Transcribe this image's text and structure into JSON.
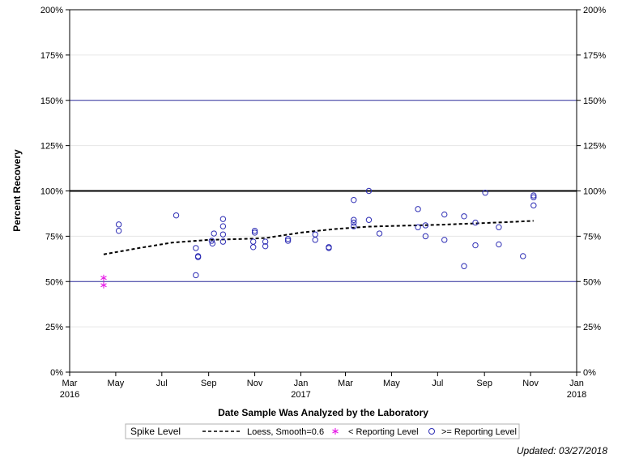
{
  "chart_data": {
    "type": "scatter",
    "xlabel": "Date Sample Was Analyzed by the Laboratory",
    "ylabel": "Percent Recovery",
    "xlim": [
      "2016-03-01",
      "2018-01-01"
    ],
    "ylim": [
      0,
      200
    ],
    "x_ticks": [
      {
        "date": "2016-03-01",
        "label": "Mar",
        "year": "2016"
      },
      {
        "date": "2016-05-01",
        "label": "May",
        "year": ""
      },
      {
        "date": "2016-07-01",
        "label": "Jul",
        "year": ""
      },
      {
        "date": "2016-09-01",
        "label": "Sep",
        "year": ""
      },
      {
        "date": "2016-11-01",
        "label": "Nov",
        "year": ""
      },
      {
        "date": "2017-01-01",
        "label": "Jan",
        "year": "2017"
      },
      {
        "date": "2017-03-01",
        "label": "Mar",
        "year": ""
      },
      {
        "date": "2017-05-01",
        "label": "May",
        "year": ""
      },
      {
        "date": "2017-07-01",
        "label": "Jul",
        "year": ""
      },
      {
        "date": "2017-09-01",
        "label": "Sep",
        "year": ""
      },
      {
        "date": "2017-11-01",
        "label": "Nov",
        "year": ""
      },
      {
        "date": "2018-01-01",
        "label": "Jan",
        "year": "2018"
      }
    ],
    "y_ticks": [
      0,
      25,
      50,
      75,
      100,
      125,
      150,
      175,
      200
    ],
    "y_tick_labels": [
      "0%",
      "25%",
      "50%",
      "75%",
      "100%",
      "125%",
      "150%",
      "175%",
      "200%"
    ],
    "grid": true,
    "reference_lines": [
      {
        "y": 50,
        "color": "#2e2e9e",
        "style": "thin"
      },
      {
        "y": 100,
        "color": "#000000",
        "style": "thick"
      },
      {
        "y": 150,
        "color": "#2e2e9e",
        "style": "thin"
      }
    ],
    "series": [
      {
        "name": "Loess, Smoothing=0.6",
        "type": "line",
        "style": "dashed",
        "color": "#000000",
        "points": [
          [
            "2016-04-15",
            65
          ],
          [
            "2016-06-01",
            68.5
          ],
          [
            "2016-07-15",
            71.5
          ],
          [
            "2016-09-01",
            73
          ],
          [
            "2016-10-15",
            73.5
          ],
          [
            "2016-11-15",
            74
          ],
          [
            "2017-01-01",
            77
          ],
          [
            "2017-02-15",
            79
          ],
          [
            "2017-04-01",
            80.3
          ],
          [
            "2017-05-15",
            80.8
          ],
          [
            "2017-07-01",
            81.3
          ],
          [
            "2017-08-15",
            82
          ],
          [
            "2017-10-01",
            82.8
          ],
          [
            "2017-11-05",
            83.5
          ]
        ]
      },
      {
        "name": "< Reporting Level",
        "type": "scatter",
        "marker": "asterisk",
        "color": "#e619e6",
        "points": [
          [
            "2016-04-15",
            52
          ],
          [
            "2016-04-15",
            48
          ]
        ]
      },
      {
        "name": ">= Reporting Level",
        "type": "scatter",
        "marker": "open-circle",
        "color": "#2d2db4",
        "points": [
          [
            "2016-05-05",
            81.5
          ],
          [
            "2016-05-05",
            78
          ],
          [
            "2016-07-20",
            86.5
          ],
          [
            "2016-08-15",
            68.5
          ],
          [
            "2016-08-15",
            53.5
          ],
          [
            "2016-08-18",
            64
          ],
          [
            "2016-08-18",
            63.5
          ],
          [
            "2016-09-05",
            72.5
          ],
          [
            "2016-09-06",
            71
          ],
          [
            "2016-09-08",
            76.5
          ],
          [
            "2016-09-20",
            84.5
          ],
          [
            "2016-09-20",
            80.5
          ],
          [
            "2016-09-20",
            76
          ],
          [
            "2016-09-20",
            72
          ],
          [
            "2016-10-30",
            72
          ],
          [
            "2016-10-30",
            69
          ],
          [
            "2016-11-01",
            78
          ],
          [
            "2016-11-01",
            77
          ],
          [
            "2016-11-15",
            72
          ],
          [
            "2016-11-15",
            69.5
          ],
          [
            "2016-12-15",
            73.5
          ],
          [
            "2016-12-15",
            72.5
          ],
          [
            "2017-01-20",
            76
          ],
          [
            "2017-01-20",
            73
          ],
          [
            "2017-02-07",
            69
          ],
          [
            "2017-02-07",
            68.5
          ],
          [
            "2017-03-12",
            95
          ],
          [
            "2017-03-12",
            84
          ],
          [
            "2017-03-12",
            82.5
          ],
          [
            "2017-03-12",
            80.5
          ],
          [
            "2017-04-01",
            100
          ],
          [
            "2017-04-01",
            84
          ],
          [
            "2017-04-15",
            76.5
          ],
          [
            "2017-06-05",
            90
          ],
          [
            "2017-06-05",
            80
          ],
          [
            "2017-06-15",
            81
          ],
          [
            "2017-06-15",
            75
          ],
          [
            "2017-07-10",
            87
          ],
          [
            "2017-07-10",
            73
          ],
          [
            "2017-08-05",
            86
          ],
          [
            "2017-08-05",
            58.5
          ],
          [
            "2017-08-20",
            82.5
          ],
          [
            "2017-08-20",
            70
          ],
          [
            "2017-09-02",
            99
          ],
          [
            "2017-09-20",
            80
          ],
          [
            "2017-09-20",
            70.5
          ],
          [
            "2017-10-22",
            64
          ],
          [
            "2017-11-05",
            97.5
          ],
          [
            "2017-11-05",
            96.5
          ],
          [
            "2017-11-05",
            92
          ]
        ]
      }
    ],
    "legend": {
      "placement": "bottom",
      "title": "Spike Level",
      "entries": [
        "Loess, Smooth=0.6",
        "< Reporting Level",
        ">= Reporting Level"
      ]
    },
    "footnote": "Updated: 03/27/2018"
  }
}
